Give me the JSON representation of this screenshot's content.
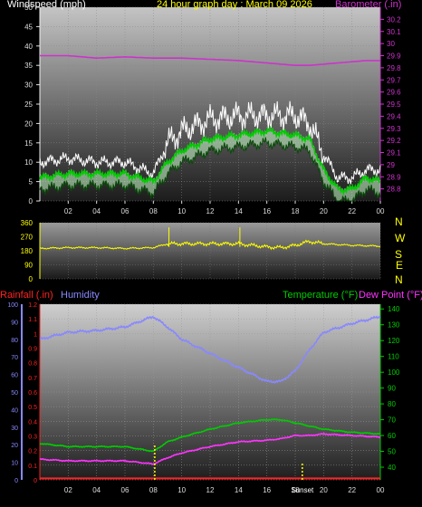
{
  "header": {
    "windspeed_label": "Windspeed (mph)",
    "title": "24 hour graph day : March 09 2026",
    "barometer_label": "Barometer (.in)"
  },
  "lower_header": {
    "rainfall_label": "Rainfall (.in)",
    "humidity_label": "Humidity",
    "temperature_label": "Temperature (°F)",
    "dewpoint_label": "Dew Point (°F)"
  },
  "compass": [
    "N",
    "W",
    "S",
    "E",
    "N"
  ],
  "markers": {
    "sunrise_label": "08",
    "sunset_label": "Sunset"
  },
  "colors": {
    "wind_gust": "#ffffff",
    "wind_avg": "#00cc00",
    "wind_fill": "#ccffcc",
    "barometer": "#cc33cc",
    "direction": "#ffff00",
    "rain": "#ff2222",
    "humidity": "#8888ff",
    "temperature": "#00cc00",
    "dewpoint": "#ff33ff",
    "title": "#ffff00",
    "label_left": "#dddddd"
  },
  "chart_data": [
    {
      "type": "line",
      "title": "24 hour graph day : March 09 2026",
      "ylabel": "Windspeed (mph)",
      "y2label": "Barometer (.in)",
      "x_ticks": [
        "02",
        "04",
        "06",
        "08",
        "10",
        "12",
        "14",
        "16",
        "18",
        "20",
        "22",
        "00"
      ],
      "x": [
        0,
        2,
        4,
        6,
        8,
        9,
        10,
        12,
        14,
        16,
        18,
        19,
        20,
        21,
        22,
        23,
        24
      ],
      "ylim": [
        0,
        50
      ],
      "y_ticks": [
        "0",
        "5",
        "10",
        "15",
        "20",
        "25",
        "30",
        "35",
        "40",
        "45",
        "50"
      ],
      "y2lim": [
        28.7,
        30.3
      ],
      "y2_ticks": [
        "28.8",
        "28.9",
        "29",
        "29.1",
        "29.2",
        "29.3",
        "29.4",
        "29.5",
        "29.6",
        "29.7",
        "29.8",
        "29.9",
        "30",
        "30.1",
        "30.2"
      ],
      "series": [
        {
          "values": [
            10,
            11,
            10,
            10,
            7,
            15,
            18,
            21,
            22,
            22,
            22,
            20,
            12,
            6,
            6,
            8,
            8
          ]
        },
        {
          "values": [
            6,
            7,
            7,
            7,
            5,
            10,
            13,
            16,
            17,
            18,
            17,
            16,
            8,
            3,
            3,
            6,
            5
          ]
        },
        {
          "values": [
            29.9,
            29.9,
            29.88,
            29.89,
            29.88,
            29.88,
            29.88,
            29.87,
            29.86,
            29.84,
            29.82,
            29.82,
            29.83,
            29.84,
            29.85,
            29.86,
            29.86
          ]
        }
      ]
    },
    {
      "type": "line",
      "x_ticks": [
        "02",
        "04",
        "06",
        "08",
        "10",
        "12",
        "14",
        "16",
        "18",
        "20",
        "22",
        "00"
      ],
      "x": [
        0,
        2,
        4,
        6,
        8,
        9,
        10,
        12,
        14,
        16,
        17,
        18,
        19,
        20,
        22,
        24
      ],
      "ylim": [
        0,
        360
      ],
      "y_ticks": [
        "0",
        "90",
        "180",
        "270",
        "360"
      ],
      "series": [
        {
          "values": [
            195,
            200,
            200,
            195,
            200,
            225,
            225,
            225,
            225,
            205,
            200,
            215,
            240,
            225,
            215,
            210
          ]
        }
      ]
    },
    {
      "type": "line",
      "x_ticks": [
        "02",
        "04",
        "06",
        "08",
        "10",
        "12",
        "14",
        "16",
        "18",
        "20",
        "22",
        "00"
      ],
      "x": [
        0,
        2,
        4,
        6,
        8,
        9,
        10,
        12,
        14,
        16,
        17,
        18,
        19,
        20,
        22,
        24
      ],
      "rain_ticks": [
        "0",
        "0.1",
        "0.2",
        "0.3",
        "0.4",
        "0.5",
        "0.6",
        "0.7",
        "0.8",
        "0.9",
        "1",
        "1.1",
        "1.2"
      ],
      "rain_lim": [
        0,
        1.2
      ],
      "humidity_ticks": [
        "0",
        "10",
        "20",
        "30",
        "40",
        "50",
        "60",
        "70",
        "80",
        "90",
        "100"
      ],
      "humidity_lim": [
        0,
        100
      ],
      "temp_ticks": [
        "40",
        "50",
        "60",
        "70",
        "80",
        "90",
        "100",
        "110",
        "120",
        "130",
        "140"
      ],
      "temp_lim": [
        32,
        143
      ],
      "series": [
        {
          "name": "Rainfall (.in)",
          "values": [
            0.01,
            0.01,
            0.01,
            0.01,
            0.01,
            0.01,
            0.01,
            0.01,
            0.01,
            0.01,
            0.01,
            0.01,
            0.01,
            0.01,
            0.01,
            0.01
          ]
        },
        {
          "name": "Humidity",
          "values": [
            80,
            84,
            85,
            87,
            93,
            87,
            80,
            72,
            64,
            56,
            56,
            62,
            74,
            84,
            89,
            93
          ]
        },
        {
          "name": "Temperature (°F)",
          "values": [
            55,
            53,
            53,
            53,
            50,
            56,
            59,
            64,
            68,
            70,
            70,
            68,
            66,
            64,
            62,
            61
          ]
        },
        {
          "name": "Dew Point (°F)",
          "values": [
            45,
            44,
            44,
            44,
            42,
            46,
            49,
            53,
            56,
            57,
            58,
            60,
            60,
            61,
            60,
            59
          ]
        }
      ]
    }
  ]
}
